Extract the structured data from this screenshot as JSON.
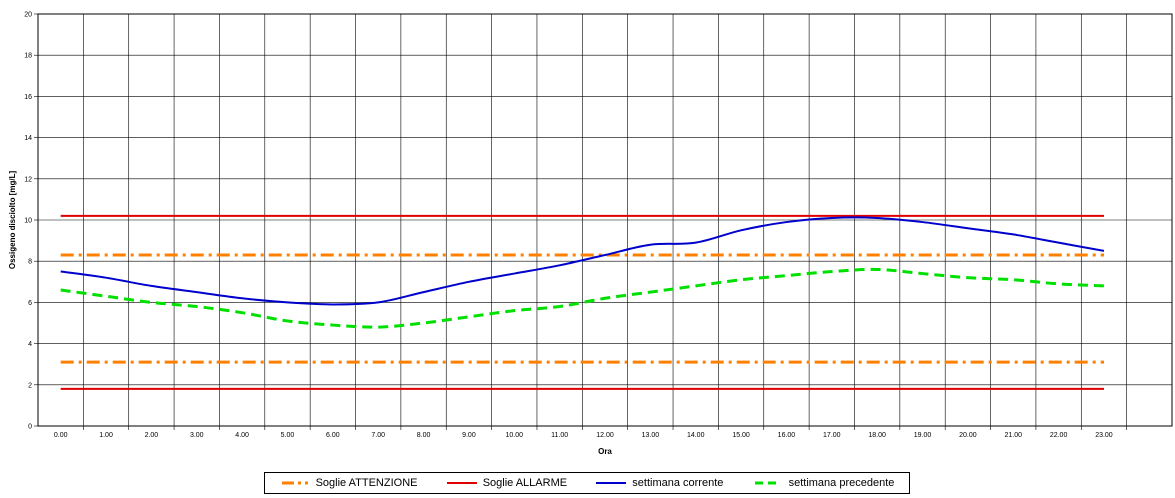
{
  "chart_data": {
    "type": "line",
    "xlabel": "Ora",
    "ylabel": "Ossigeno disciolto [mg/L]",
    "ylim": [
      0,
      20
    ],
    "yticks": [
      "0",
      "2",
      "4",
      "6",
      "8",
      "10",
      "12",
      "14",
      "16",
      "18",
      "20"
    ],
    "categories": [
      "0.00",
      "1.00",
      "2.00",
      "3.00",
      "4.00",
      "5.00",
      "6.00",
      "7.00",
      "8.00",
      "9.00",
      "10.00",
      "11.00",
      "12.00",
      "13.00",
      "14.00",
      "15.00",
      "16.00",
      "17.00",
      "18.00",
      "19.00",
      "20.00",
      "21.00",
      "22.00",
      "23.00"
    ],
    "grid": true,
    "legend_position": "bottom",
    "series": [
      {
        "name": "Soglie ATTENZIONE",
        "color": "#FF8000",
        "style": "dashdot",
        "lines": [
          {
            "values": [
              8.3,
              8.3,
              8.3,
              8.3,
              8.3,
              8.3,
              8.3,
              8.3,
              8.3,
              8.3,
              8.3,
              8.3,
              8.3,
              8.3,
              8.3,
              8.3,
              8.3,
              8.3,
              8.3,
              8.3,
              8.3,
              8.3,
              8.3,
              8.3
            ]
          },
          {
            "values": [
              3.1,
              3.1,
              3.1,
              3.1,
              3.1,
              3.1,
              3.1,
              3.1,
              3.1,
              3.1,
              3.1,
              3.1,
              3.1,
              3.1,
              3.1,
              3.1,
              3.1,
              3.1,
              3.1,
              3.1,
              3.1,
              3.1,
              3.1,
              3.1
            ]
          }
        ]
      },
      {
        "name": "Soglie ALLARME",
        "color": "#E00000",
        "style": "solid",
        "lines": [
          {
            "values": [
              10.2,
              10.2,
              10.2,
              10.2,
              10.2,
              10.2,
              10.2,
              10.2,
              10.2,
              10.2,
              10.2,
              10.2,
              10.2,
              10.2,
              10.2,
              10.2,
              10.2,
              10.2,
              10.2,
              10.2,
              10.2,
              10.2,
              10.2,
              10.2
            ]
          },
          {
            "values": [
              1.8,
              1.8,
              1.8,
              1.8,
              1.8,
              1.8,
              1.8,
              1.8,
              1.8,
              1.8,
              1.8,
              1.8,
              1.8,
              1.8,
              1.8,
              1.8,
              1.8,
              1.8,
              1.8,
              1.8,
              1.8,
              1.8,
              1.8,
              1.8
            ]
          }
        ]
      },
      {
        "name": "settimana corrente",
        "color": "#0000CC",
        "style": "solid",
        "values": [
          7.5,
          7.2,
          6.8,
          6.5,
          6.2,
          6.0,
          5.9,
          6.0,
          6.5,
          7.0,
          7.4,
          7.8,
          8.3,
          8.8,
          8.9,
          9.5,
          9.9,
          10.1,
          10.1,
          9.9,
          9.6,
          9.3,
          8.9,
          8.5
        ]
      },
      {
        "name": "settimana precedente",
        "color": "#00E000",
        "style": "dashed",
        "values": [
          6.6,
          6.3,
          6.0,
          5.8,
          5.5,
          5.1,
          4.9,
          4.8,
          5.0,
          5.3,
          5.6,
          5.8,
          6.2,
          6.5,
          6.8,
          7.1,
          7.3,
          7.5,
          7.6,
          7.4,
          7.2,
          7.1,
          6.9,
          6.8
        ]
      }
    ]
  }
}
